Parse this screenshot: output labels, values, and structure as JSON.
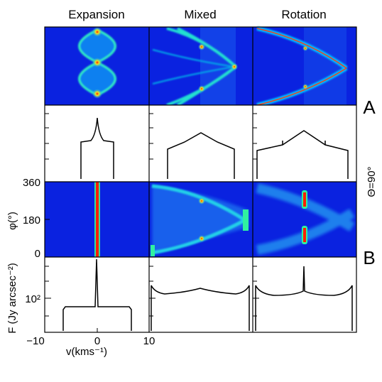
{
  "column_titles": [
    "Expansion",
    "Mixed",
    "Rotation"
  ],
  "row_group_labels": [
    "A",
    "B"
  ],
  "theta_label": "Θ=90°",
  "phi_axis": {
    "label": "φ(°)",
    "ticks": [
      "360",
      "180",
      "0"
    ]
  },
  "flux_axis": {
    "label": "F (Jy arcsec⁻²)",
    "tick": "10²"
  },
  "velocity_axis": {
    "label": "v(kms⁻¹)",
    "ticks": [
      "−10",
      "0",
      "10"
    ]
  },
  "colors": {
    "map_background": "#0a22e0",
    "map_mid": "#00b0e8",
    "map_high": "#30f0a0",
    "map_peak": "#ff2000",
    "line": "#000000"
  },
  "chart_data": {
    "type": "panel grid",
    "columns": [
      "Expansion",
      "Mixed",
      "Rotation"
    ],
    "rows": [
      {
        "group": "A",
        "kind": "position-velocity map",
        "expansion": {
          "shape": "double lens",
          "peaks_at_v": 0
        },
        "mixed": {
          "shape": "chevron pointing to positive v"
        },
        "rotation": {
          "shape": "wide chevron pointing to positive v"
        }
      },
      {
        "group": "A",
        "kind": "line profile",
        "expansion": {
          "v_range": [
            -3.4,
            3.4
          ],
          "shape": "flat with central cusp"
        },
        "mixed": {
          "v_range": [
            -6.7,
            6.7
          ],
          "shape": "flat-topped with central bump"
        },
        "rotation": {
          "v_range": [
            -8.5,
            8.5
          ],
          "shape": "flat-topped with central spike"
        }
      },
      {
        "group": "B",
        "kind": "phi-velocity map",
        "y_range_deg": [
          0,
          360
        ],
        "expansion": {
          "shape": "vertical ridge at v=0"
        },
        "mixed": {
          "shape": "sinusoidal arcs"
        },
        "rotation": {
          "shape": "arcs with compact peaks near v=0"
        }
      },
      {
        "group": "B",
        "kind": "line profile",
        "x_range": [
          -10,
          10
        ],
        "expansion": {
          "v_range": [
            -6.5,
            6.5
          ],
          "shape": "flat with narrow central spike"
        },
        "mixed": {
          "v_range": [
            -9.5,
            9.5
          ],
          "shape": "double-horned with small central bump"
        },
        "rotation": {
          "v_range": [
            -9.5,
            9.5
          ],
          "shape": "double-horned with narrow central spike"
        }
      }
    ]
  }
}
